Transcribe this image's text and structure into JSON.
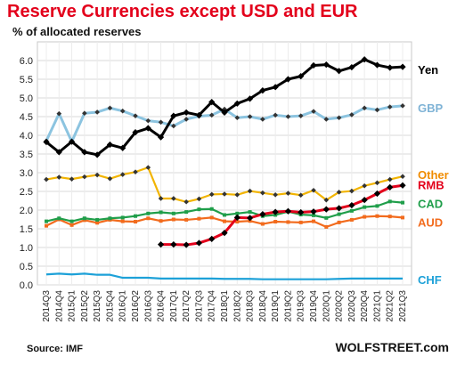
{
  "title": "Reserve Currencies except USD and EUR",
  "subtitle": "% of allocated reserves",
  "source": "Source: IMF",
  "brand": "WOLFSTREET.com",
  "chart_data": {
    "type": "line",
    "title": "Reserve Currencies except USD and EUR",
    "ylabel": "% of allocated reserves",
    "ylim": [
      0,
      6.5
    ],
    "yticks": [
      "0.0",
      "0.5",
      "1.0",
      "1.5",
      "2.0",
      "2.5",
      "3.0",
      "3.5",
      "4.0",
      "4.5",
      "5.0",
      "5.5",
      "6.0"
    ],
    "grid": true,
    "legend": "right-side labels",
    "categories": [
      "2014Q3",
      "2014Q4",
      "2015Q1",
      "2015Q2",
      "2015Q3",
      "2015Q4",
      "2016Q1",
      "2016Q2",
      "2016Q3",
      "2016Q4",
      "2017Q1",
      "2017Q2",
      "2017Q3",
      "2017Q4",
      "2018Q1",
      "2018Q2",
      "2018Q3",
      "2018Q4",
      "2019Q1",
      "2019Q2",
      "2019Q3",
      "2019Q4",
      "2020Q1",
      "2020Q2",
      "2020Q3",
      "2020Q4",
      "2021Q1",
      "2021Q2",
      "2021Q3"
    ],
    "series": [
      {
        "name": "Yen",
        "color": "#000000",
        "marker": "diamond",
        "values": [
          3.82,
          3.55,
          3.83,
          3.55,
          3.48,
          3.75,
          3.66,
          4.08,
          4.19,
          3.95,
          4.52,
          4.61,
          4.54,
          4.89,
          4.61,
          4.85,
          4.98,
          5.2,
          5.29,
          5.5,
          5.58,
          5.87,
          5.89,
          5.72,
          5.82,
          6.03,
          5.88,
          5.81,
          5.83
        ]
      },
      {
        "name": "GBP",
        "color": "#8cc4e0",
        "marker": "diamond",
        "values": [
          3.85,
          4.58,
          3.83,
          4.59,
          4.62,
          4.73,
          4.65,
          4.52,
          4.39,
          4.35,
          4.25,
          4.43,
          4.51,
          4.54,
          4.7,
          4.47,
          4.5,
          4.43,
          4.54,
          4.5,
          4.52,
          4.64,
          4.43,
          4.47,
          4.55,
          4.73,
          4.68,
          4.76,
          4.79
        ]
      },
      {
        "name": "Other",
        "color": "#f2b400",
        "marker": "diamond",
        "values": [
          2.82,
          2.88,
          2.83,
          2.89,
          2.94,
          2.84,
          2.95,
          3.02,
          3.14,
          2.31,
          2.31,
          2.22,
          2.3,
          2.42,
          2.43,
          2.41,
          2.51,
          2.46,
          2.41,
          2.45,
          2.4,
          2.53,
          2.27,
          2.48,
          2.51,
          2.65,
          2.73,
          2.82,
          2.9
        ]
      },
      {
        "name": "RMB",
        "color": "#e3001b",
        "marker": "diamond",
        "values": [
          null,
          null,
          null,
          null,
          null,
          null,
          null,
          null,
          null,
          1.08,
          1.08,
          1.07,
          1.12,
          1.23,
          1.39,
          1.8,
          1.79,
          1.89,
          1.95,
          1.97,
          1.94,
          1.96,
          2.02,
          2.05,
          2.13,
          2.27,
          2.44,
          2.61,
          2.66
        ]
      },
      {
        "name": "CAD",
        "color": "#1f9e4a",
        "marker": "square",
        "values": [
          1.7,
          1.78,
          1.7,
          1.78,
          1.74,
          1.78,
          1.8,
          1.84,
          1.91,
          1.94,
          1.91,
          1.95,
          2.02,
          2.03,
          1.87,
          1.91,
          1.95,
          1.84,
          1.87,
          1.96,
          1.88,
          1.86,
          1.79,
          1.89,
          1.98,
          2.08,
          2.11,
          2.23,
          2.2
        ]
      },
      {
        "name": "AUD",
        "color": "#f26b1d",
        "marker": "square",
        "values": [
          1.58,
          1.75,
          1.6,
          1.73,
          1.66,
          1.74,
          1.7,
          1.69,
          1.78,
          1.71,
          1.75,
          1.74,
          1.77,
          1.8,
          1.7,
          1.69,
          1.71,
          1.63,
          1.69,
          1.68,
          1.67,
          1.7,
          1.55,
          1.67,
          1.74,
          1.82,
          1.84,
          1.83,
          1.8
        ]
      },
      {
        "name": "CHF",
        "color": "#1da1d8",
        "marker": "none",
        "values": [
          0.28,
          0.3,
          0.28,
          0.3,
          0.27,
          0.27,
          0.19,
          0.19,
          0.19,
          0.17,
          0.17,
          0.17,
          0.17,
          0.17,
          0.16,
          0.16,
          0.16,
          0.15,
          0.15,
          0.15,
          0.15,
          0.15,
          0.15,
          0.16,
          0.17,
          0.17,
          0.17,
          0.17,
          0.17
        ]
      }
    ]
  }
}
